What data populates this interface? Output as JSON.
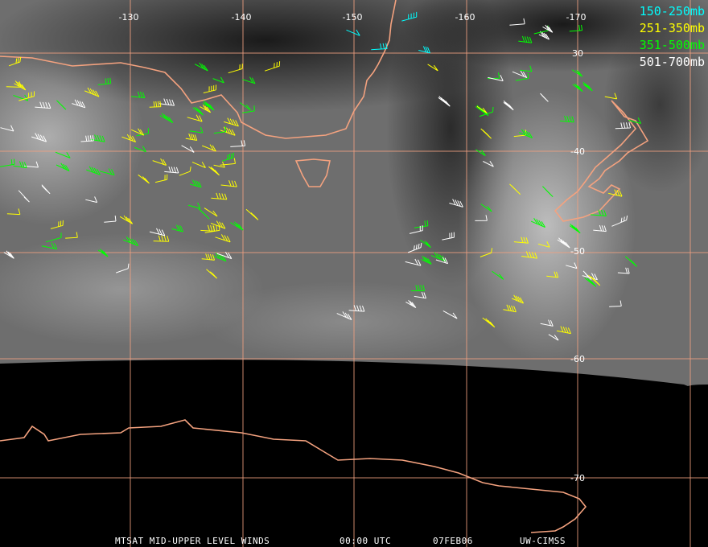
{
  "map": {
    "longitude_labels": [
      "-130",
      "-140",
      "-150",
      "-160",
      "-170"
    ],
    "latitude_labels": [
      "30",
      "-40",
      "-50",
      "-60",
      "-70"
    ]
  },
  "legend": [
    "150-250mb",
    "251-350mb",
    "351-500mb",
    "501-700mb"
  ],
  "footer": {
    "product": "MTSAT MID-UPPER LEVEL WINDS",
    "time": "00:00 UTC",
    "date": "07FEB06",
    "source": "UW-CIMSS"
  }
}
